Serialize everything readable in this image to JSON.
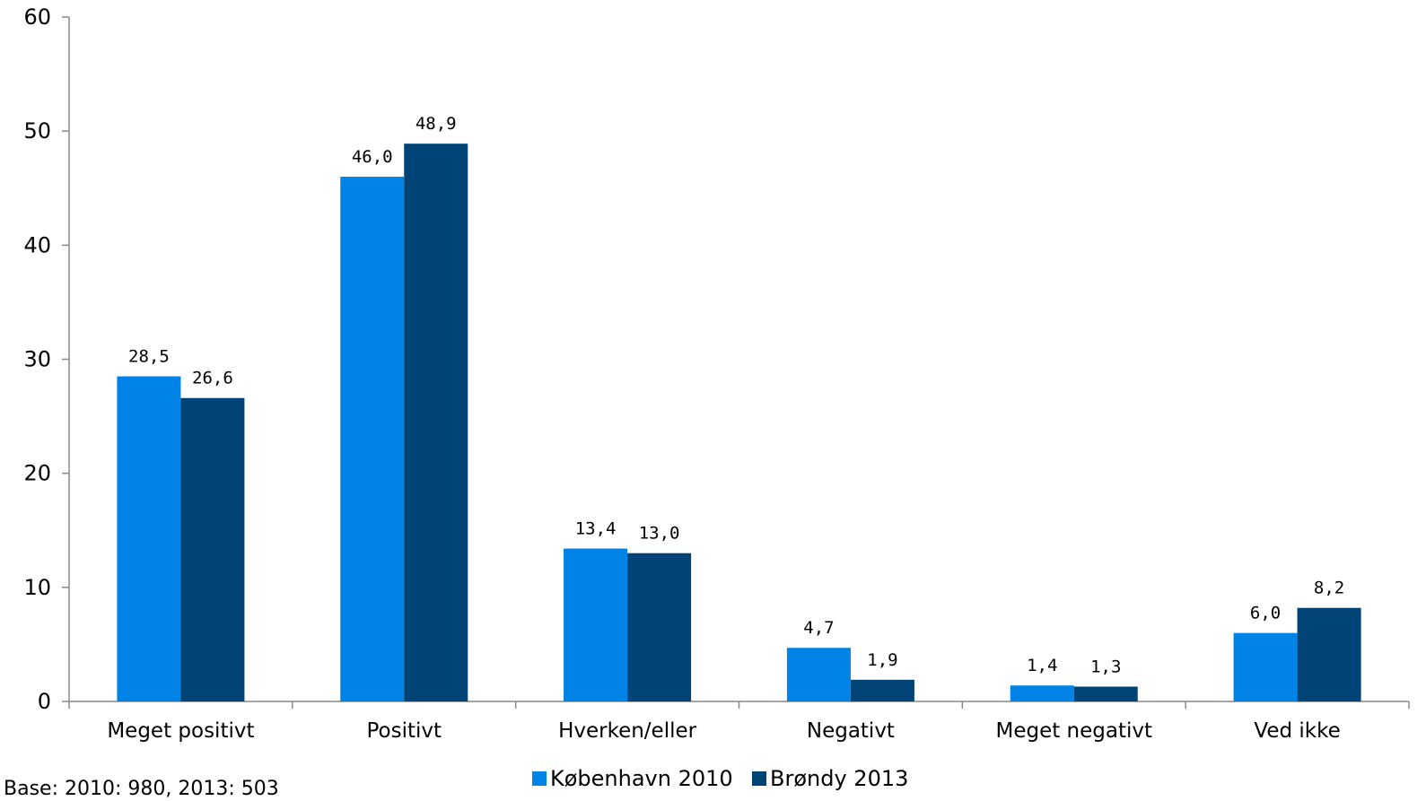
{
  "chart_data": {
    "type": "bar",
    "categories": [
      "Meget positivt",
      "Positivt",
      "Hverken/eller",
      "Negativt",
      "Meget negativt",
      "Ved ikke"
    ],
    "series": [
      {
        "name": "København 2010",
        "color": "#0083E6",
        "values": [
          28.5,
          46.0,
          13.4,
          4.7,
          1.4,
          6.0
        ],
        "labels": [
          "28,5",
          "46,0",
          "13,4",
          "4,7",
          "1,4",
          "6,0"
        ]
      },
      {
        "name": "Brøndy 2013",
        "color": "#004477",
        "values": [
          26.6,
          48.9,
          13.0,
          1.9,
          1.3,
          8.2
        ],
        "labels": [
          "26,6",
          "48,9",
          "13,0",
          "1,9",
          "1,3",
          "8,2"
        ]
      }
    ],
    "title": "",
    "xlabel": "",
    "ylabel": "",
    "ylim": [
      0,
      60
    ],
    "yticks": [
      "0",
      "10",
      "20",
      "30",
      "40",
      "50",
      "60"
    ],
    "legend_position": "bottom-center",
    "grid": false
  },
  "footnote": "Base: 2010: 980, 2013: 503"
}
